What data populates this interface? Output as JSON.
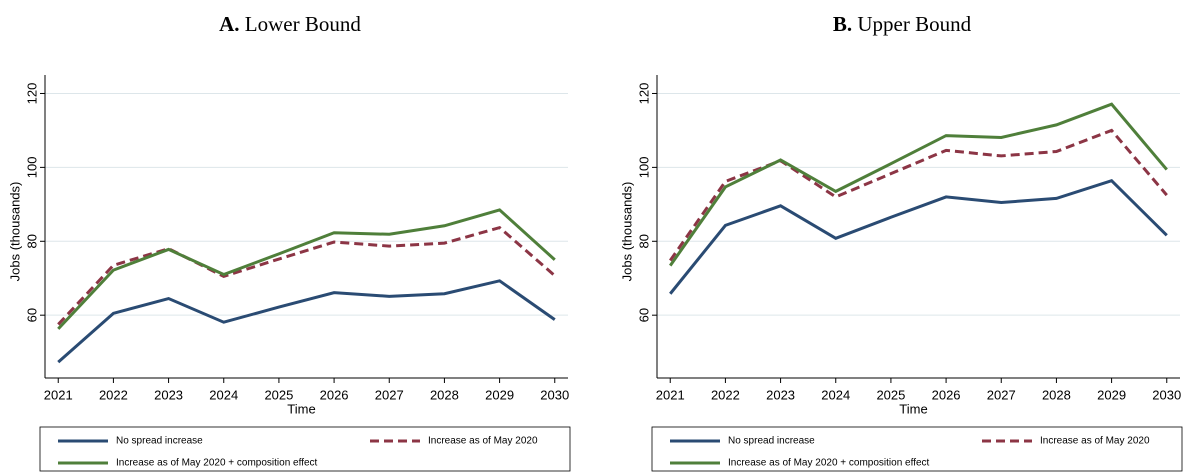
{
  "chart_data": [
    {
      "type": "line",
      "panel_label": "A.",
      "title": "Lower Bound",
      "x_label": "Time",
      "y_label": "Jobs (thousands)",
      "x": [
        2021,
        2022,
        2023,
        2024,
        2025,
        2026,
        2027,
        2028,
        2029,
        2030
      ],
      "xlim": [
        2020.76,
        2030.24
      ],
      "xticks": [
        2021,
        2022,
        2023,
        2024,
        2025,
        2026,
        2027,
        2028,
        2029,
        2030
      ],
      "ylim": [
        43,
        125
      ],
      "yticks": [
        60,
        80,
        100,
        120
      ],
      "grid": true,
      "series": [
        {
          "name": "No spread increase",
          "color": "#2a4b73",
          "dash": "solid",
          "values": [
            47.3,
            60.5,
            64.5,
            58.1,
            62.2,
            66.1,
            65.1,
            65.8,
            69.3,
            58.8
          ]
        },
        {
          "name": "Increase as of May 2020",
          "color": "#8c3545",
          "dash": "dashed",
          "values": [
            57.5,
            73.5,
            78,
            70.5,
            75.2,
            79.8,
            78.7,
            79.5,
            83.7,
            70.7
          ]
        },
        {
          "name": "Increase as of May 2020 + composition effect",
          "color": "#4f7f3a",
          "dash": "solid",
          "values": [
            56.3,
            72.2,
            77.8,
            71,
            76.6,
            82.3,
            81.9,
            84.2,
            88.5,
            75
          ]
        }
      ]
    },
    {
      "type": "line",
      "panel_label": "B.",
      "title": "Upper Bound",
      "x_label": "Time",
      "y_label": "Jobs (thousands)",
      "x": [
        2021,
        2022,
        2023,
        2024,
        2025,
        2026,
        2027,
        2028,
        2029,
        2030
      ],
      "xlim": [
        2020.76,
        2030.24
      ],
      "xticks": [
        2021,
        2022,
        2023,
        2024,
        2025,
        2026,
        2027,
        2028,
        2029,
        2030
      ],
      "ylim": [
        43,
        125
      ],
      "yticks": [
        60,
        80,
        100,
        120
      ],
      "grid": true,
      "series": [
        {
          "name": "No spread increase",
          "color": "#2a4b73",
          "dash": "solid",
          "values": [
            65.8,
            84.3,
            89.6,
            80.8,
            86.5,
            92,
            90.5,
            91.6,
            96.4,
            81.6
          ]
        },
        {
          "name": "Increase as of May 2020",
          "color": "#8c3545",
          "dash": "dashed",
          "values": [
            74.8,
            96.2,
            101.8,
            92,
            98.3,
            104.6,
            103.1,
            104.3,
            110,
            92.5
          ]
        },
        {
          "name": "Increase as of May 2020 + composition effect",
          "color": "#4f7f3a",
          "dash": "solid",
          "values": [
            73.4,
            94.7,
            102,
            93.5,
            101,
            108.6,
            108.1,
            111.5,
            117.1,
            99.4
          ]
        }
      ]
    }
  ]
}
